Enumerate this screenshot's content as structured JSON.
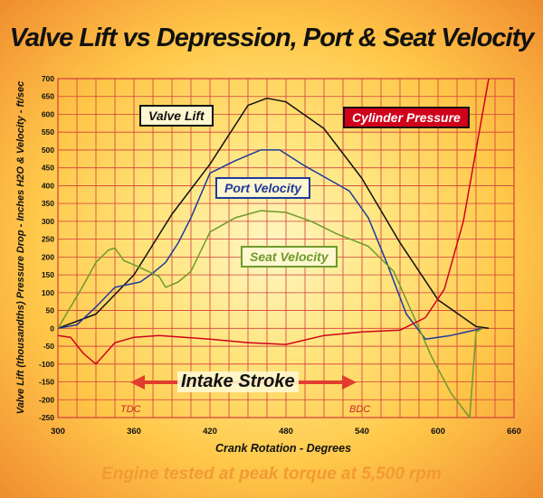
{
  "chart_data": {
    "type": "line",
    "title": "Valve Lift vs Depression, Port &  Seat  Velocity",
    "xlabel": "Crank Rotation - Degrees",
    "ylabel": "Valve Lift (thousandths) Pressure Drop - Inches H2O & Velocity - ft/sec",
    "xlim": [
      300,
      660
    ],
    "ylim": [
      -250,
      700
    ],
    "xticks": [
      300,
      360,
      420,
      480,
      540,
      600,
      660
    ],
    "yticks": [
      700,
      650,
      600,
      550,
      500,
      450,
      400,
      350,
      300,
      250,
      200,
      150,
      100,
      50,
      0,
      -50,
      -100,
      -150,
      -200,
      -250
    ],
    "grid": true,
    "series": [
      {
        "name": "Valve Lift",
        "color": "#111111",
        "points": [
          [
            300,
            0
          ],
          [
            330,
            40
          ],
          [
            360,
            150
          ],
          [
            390,
            320
          ],
          [
            420,
            460
          ],
          [
            450,
            625
          ],
          [
            465,
            645
          ],
          [
            480,
            635
          ],
          [
            510,
            560
          ],
          [
            540,
            420
          ],
          [
            570,
            240
          ],
          [
            600,
            80
          ],
          [
            630,
            5
          ],
          [
            640,
            0
          ]
        ]
      },
      {
        "name": "Port Velocity",
        "color": "#203a9a",
        "points": [
          [
            300,
            0
          ],
          [
            315,
            10
          ],
          [
            330,
            60
          ],
          [
            345,
            115
          ],
          [
            365,
            130
          ],
          [
            375,
            155
          ],
          [
            385,
            185
          ],
          [
            395,
            240
          ],
          [
            405,
            310
          ],
          [
            420,
            435
          ],
          [
            440,
            470
          ],
          [
            460,
            500
          ],
          [
            475,
            500
          ],
          [
            495,
            455
          ],
          [
            515,
            415
          ],
          [
            530,
            385
          ],
          [
            545,
            310
          ],
          [
            560,
            180
          ],
          [
            575,
            40
          ],
          [
            590,
            -30
          ],
          [
            610,
            -20
          ],
          [
            635,
            0
          ]
        ]
      },
      {
        "name": "Seat Velocity",
        "color": "#6e9a2c",
        "points": [
          [
            300,
            0
          ],
          [
            310,
            60
          ],
          [
            320,
            120
          ],
          [
            330,
            185
          ],
          [
            340,
            220
          ],
          [
            345,
            225
          ],
          [
            352,
            190
          ],
          [
            362,
            175
          ],
          [
            380,
            145
          ],
          [
            385,
            115
          ],
          [
            395,
            130
          ],
          [
            405,
            160
          ],
          [
            420,
            270
          ],
          [
            440,
            310
          ],
          [
            460,
            330
          ],
          [
            480,
            325
          ],
          [
            500,
            300
          ],
          [
            520,
            265
          ],
          [
            545,
            230
          ],
          [
            565,
            160
          ],
          [
            580,
            40
          ],
          [
            595,
            -80
          ],
          [
            610,
            -180
          ],
          [
            625,
            -250
          ],
          [
            630,
            -10
          ],
          [
            635,
            0
          ]
        ]
      },
      {
        "name": "Cylinder Pressure",
        "color": "#d0021b",
        "points": [
          [
            300,
            -20
          ],
          [
            310,
            -25
          ],
          [
            320,
            -70
          ],
          [
            330,
            -100
          ],
          [
            345,
            -40
          ],
          [
            360,
            -25
          ],
          [
            380,
            -20
          ],
          [
            420,
            -30
          ],
          [
            450,
            -40
          ],
          [
            480,
            -45
          ],
          [
            510,
            -20
          ],
          [
            540,
            -10
          ],
          [
            570,
            -5
          ],
          [
            590,
            30
          ],
          [
            605,
            110
          ],
          [
            620,
            300
          ],
          [
            635,
            600
          ],
          [
            640,
            700
          ]
        ]
      }
    ],
    "annotations": [
      "Intake Stroke",
      "TDC",
      "BDC"
    ]
  },
  "legend": {
    "valve_lift": "Valve Lift",
    "cylinder_pressure": "Cylinder Pressure",
    "port_velocity": "Port Velocity",
    "seat_velocity": "Seat Velocity"
  },
  "annotations": {
    "intake_stroke": "Intake Stroke",
    "tdc": "TDC",
    "bdc": "BDC"
  },
  "footer": "Engine tested at peak torque at 5,500 rpm",
  "colors": {
    "grid": "#d23c3c",
    "axis_text": "#111111",
    "footer": "#f39a34"
  }
}
